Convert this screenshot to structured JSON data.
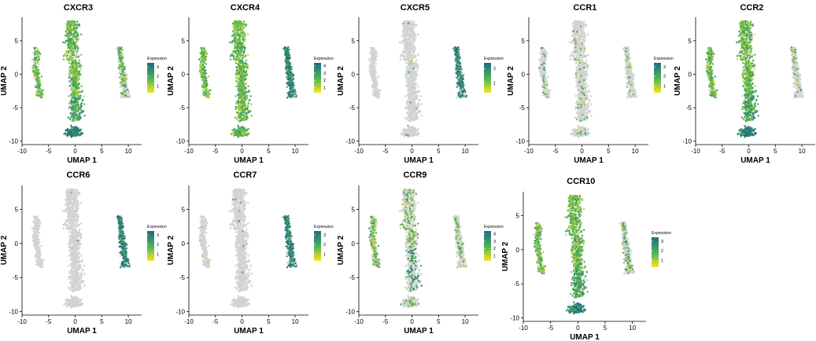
{
  "figure": {
    "chart_data": [
      {
        "type": "scatter",
        "title": "CXCR3",
        "xlabel": "UMAP 1",
        "ylabel": "UMAP 2",
        "xlim": [
          -10,
          12.5
        ],
        "ylim": [
          -10.5,
          8.5
        ],
        "xticks": [
          -10,
          -5,
          0,
          5,
          10
        ],
        "yticks": [
          -10,
          -5,
          0,
          5
        ],
        "legend": {
          "title": "Expression",
          "ticks": [
            1,
            2,
            3
          ],
          "range": [
            0.3,
            3.4
          ],
          "placement": "right"
        },
        "colors": {
          "low": "#f5e61e",
          "mid": "#49b05a",
          "high": "#216a84",
          "background": "#d3d3d3"
        },
        "pattern": {
          "left": 0.65,
          "main": 0.8,
          "bottom": 0.9,
          "right": 0.35
        },
        "hot": "bottom"
      },
      {
        "type": "scatter",
        "title": "CXCR4",
        "xlabel": "UMAP 1",
        "ylabel": "UMAP 2",
        "xlim": [
          -10,
          12.5
        ],
        "ylim": [
          -10.5,
          8.5
        ],
        "xticks": [
          -10,
          -5,
          0,
          5,
          10
        ],
        "yticks": [
          -10,
          -5,
          0,
          5
        ],
        "legend": {
          "title": "Expression",
          "ticks": [
            1,
            2,
            3,
            4
          ],
          "range": [
            0.3,
            4.4
          ],
          "placement": "right"
        },
        "colors": {
          "low": "#f5e61e",
          "mid": "#49b05a",
          "high": "#216a84",
          "background": "#d3d3d3"
        },
        "pattern": {
          "left": 0.8,
          "main": 0.9,
          "bottom": 0.85,
          "right": 0.85
        },
        "hot": "right"
      },
      {
        "type": "scatter",
        "title": "CXCR5",
        "xlabel": "UMAP 1",
        "ylabel": "UMAP 2",
        "xlim": [
          -10,
          12.5
        ],
        "ylim": [
          -10.5,
          8.5
        ],
        "xticks": [
          -10,
          -5,
          0,
          5,
          10
        ],
        "yticks": [
          -10,
          -5,
          0,
          5
        ],
        "legend": {
          "title": "Expression",
          "ticks": [
            1,
            2
          ],
          "range": [
            0.3,
            2.4
          ],
          "placement": "right"
        },
        "colors": {
          "low": "#f5e61e",
          "mid": "#49b05a",
          "high": "#216a84",
          "background": "#d3d3d3"
        },
        "pattern": {
          "left": 0.0,
          "main": 0.01,
          "bottom": 0.01,
          "right": 0.65
        },
        "hot": "right"
      },
      {
        "type": "scatter",
        "title": "CCR1",
        "xlabel": "UMAP 1",
        "ylabel": "UMAP 2",
        "xlim": [
          -10,
          12.5
        ],
        "ylim": [
          -10.5,
          8.5
        ],
        "xticks": [
          -10,
          -5,
          0,
          5,
          10
        ],
        "yticks": [
          -10,
          -5,
          0,
          5
        ],
        "legend": {
          "title": "Expression",
          "ticks": [
            1,
            2,
            3
          ],
          "range": [
            0.3,
            3.4
          ],
          "placement": "right"
        },
        "colors": {
          "low": "#f5e61e",
          "mid": "#49b05a",
          "high": "#216a84",
          "background": "#d3d3d3"
        },
        "pattern": {
          "left": 0.12,
          "main": 0.05,
          "bottom": 0.05,
          "right": 0.08
        },
        "hot": "none"
      },
      {
        "type": "scatter",
        "title": "CCR2",
        "xlabel": "UMAP 1",
        "ylabel": "UMAP 2",
        "xlim": [
          -10,
          12.5
        ],
        "ylim": [
          -10.5,
          8.5
        ],
        "xticks": [
          -10,
          -5,
          0,
          5,
          10
        ],
        "yticks": [
          -10,
          -5,
          0,
          5
        ],
        "legend": {
          "title": "Expression",
          "ticks": [
            1,
            2,
            3
          ],
          "range": [
            0.3,
            3.4
          ],
          "placement": "right"
        },
        "colors": {
          "low": "#f5e61e",
          "mid": "#49b05a",
          "high": "#216a84",
          "background": "#d3d3d3"
        },
        "pattern": {
          "left": 0.75,
          "main": 0.85,
          "bottom": 0.95,
          "right": 0.1
        },
        "hot": "bottom"
      },
      {
        "type": "scatter",
        "title": "CCR6",
        "xlabel": "UMAP 1",
        "ylabel": "UMAP 2",
        "xlim": [
          -10,
          12.5
        ],
        "ylim": [
          -10.5,
          8.5
        ],
        "xticks": [
          -10,
          -5,
          0,
          5,
          10
        ],
        "yticks": [
          -10,
          -5,
          0,
          5
        ],
        "legend": {
          "title": "Expression",
          "ticks": [
            1,
            2,
            3
          ],
          "range": [
            0.3,
            3.4
          ],
          "placement": "right"
        },
        "colors": {
          "low": "#f5e61e",
          "mid": "#49b05a",
          "high": "#216a84",
          "background": "#d3d3d3"
        },
        "pattern": {
          "left": 0.0,
          "main": 0.01,
          "bottom": 0.0,
          "right": 0.75
        },
        "hot": "right"
      },
      {
        "type": "scatter",
        "title": "CCR7",
        "xlabel": "UMAP 1",
        "ylabel": "UMAP 2",
        "xlim": [
          -10,
          12.5
        ],
        "ylim": [
          -10.5,
          8.5
        ],
        "xticks": [
          -10,
          -5,
          0,
          5,
          10
        ],
        "yticks": [
          -10,
          -5,
          0,
          5
        ],
        "legend": {
          "title": "Expression",
          "ticks": [
            1,
            2,
            3
          ],
          "range": [
            0.3,
            3.4
          ],
          "placement": "right"
        },
        "colors": {
          "low": "#f5e61e",
          "mid": "#49b05a",
          "high": "#216a84",
          "background": "#d3d3d3"
        },
        "pattern": {
          "left": 0.01,
          "main": 0.01,
          "bottom": 0.0,
          "right": 0.75
        },
        "hot": "right"
      },
      {
        "type": "scatter",
        "title": "CCR9",
        "xlabel": "UMAP 1",
        "ylabel": "UMAP 2",
        "xlim": [
          -10,
          12.5
        ],
        "ylim": [
          -10.5,
          8.5
        ],
        "xticks": [
          -10,
          -5,
          0,
          5,
          10
        ],
        "yticks": [
          -10,
          -5,
          0,
          5
        ],
        "legend": {
          "title": "Expression",
          "ticks": [
            1,
            2,
            3,
            4
          ],
          "range": [
            0.3,
            4.4
          ],
          "placement": "right"
        },
        "colors": {
          "low": "#f5e61e",
          "mid": "#49b05a",
          "high": "#216a84",
          "background": "#d3d3d3"
        },
        "pattern": {
          "left": 0.45,
          "main": 0.22,
          "bottom": 0.12,
          "right": 0.18
        },
        "hot": "main-lower"
      },
      {
        "type": "scatter",
        "title": "CCR10",
        "xlabel": "UMAP 1",
        "ylabel": "UMAP 2",
        "xlim": [
          -10,
          12.5
        ],
        "ylim": [
          -10.5,
          8.5
        ],
        "xticks": [
          -10,
          -5,
          0,
          5,
          10
        ],
        "yticks": [
          -10,
          -5,
          0,
          5
        ],
        "legend": {
          "title": "Expression",
          "ticks": [
            1,
            2,
            3
          ],
          "range": [
            0.3,
            3.4
          ],
          "placement": "right"
        },
        "colors": {
          "low": "#f5e61e",
          "mid": "#49b05a",
          "high": "#216a84",
          "background": "#d3d3d3"
        },
        "pattern": {
          "left": 0.75,
          "main": 0.8,
          "bottom": 0.9,
          "right": 0.2
        },
        "hot": "bottom"
      }
    ]
  }
}
